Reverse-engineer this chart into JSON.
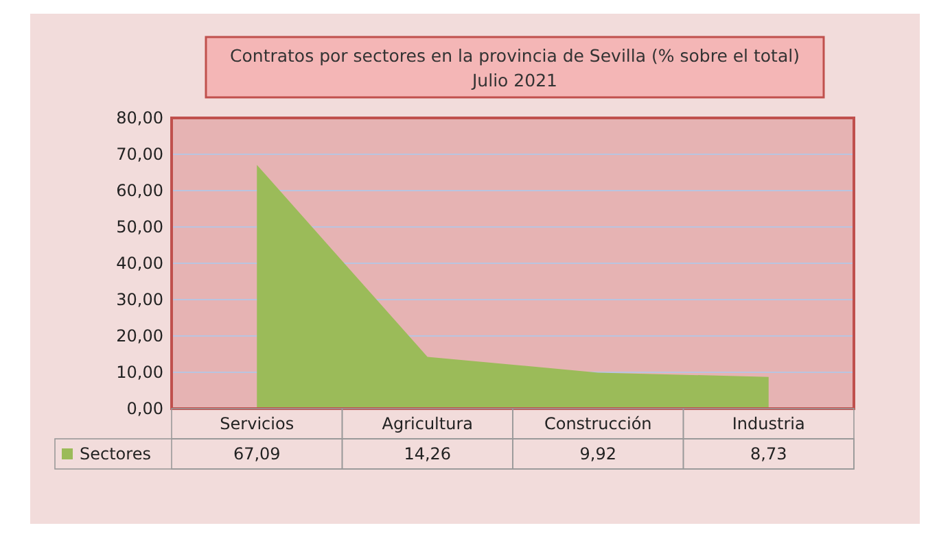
{
  "chart_data": {
    "type": "area",
    "title": "Contratos por sectores en la provincia de Sevilla (% sobre el total)",
    "subtitle": "Julio 2021",
    "categories": [
      "Servicios",
      "Agricultura",
      "Construcción",
      "Industria"
    ],
    "series": [
      {
        "name": "Sectores",
        "color": "#9bbb59",
        "values": [
          67.09,
          14.26,
          9.92,
          8.73
        ],
        "value_labels": [
          "67,09",
          "14,26",
          "9,92",
          "8,73"
        ]
      }
    ],
    "ylim": [
      0,
      80
    ],
    "yticks": [
      {
        "value": 0,
        "label": "0,00"
      },
      {
        "value": 10,
        "label": "10,00"
      },
      {
        "value": 20,
        "label": "20,00"
      },
      {
        "value": 30,
        "label": "30,00"
      },
      {
        "value": 40,
        "label": "40,00"
      },
      {
        "value": 50,
        "label": "50,00"
      },
      {
        "value": 60,
        "label": "60,00"
      },
      {
        "value": 70,
        "label": "70,00"
      },
      {
        "value": 80,
        "label": "80,00"
      }
    ],
    "grid": "y",
    "legend": "bottom"
  }
}
